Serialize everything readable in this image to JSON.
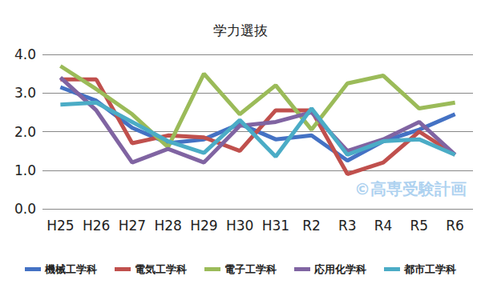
{
  "chart_data": {
    "type": "line",
    "title": "学力選抜",
    "annotation": "©高専受験計画",
    "categories": [
      "H25",
      "H26",
      "H27",
      "H28",
      "H29",
      "H30",
      "H31",
      "R2",
      "R3",
      "R4",
      "R5",
      "R6"
    ],
    "series": [
      {
        "name": "機械工学科",
        "color": "#4472c4",
        "values": [
          3.15,
          2.8,
          2.1,
          1.7,
          1.8,
          2.2,
          1.8,
          1.9,
          1.25,
          1.75,
          2.05,
          2.45
        ]
      },
      {
        "name": "電気工学科",
        "color": "#c0504d",
        "values": [
          3.35,
          3.35,
          1.7,
          1.9,
          1.85,
          1.5,
          2.55,
          2.55,
          0.9,
          1.2,
          2.0,
          1.4
        ]
      },
      {
        "name": "電子工学科",
        "color": "#9bbb59",
        "values": [
          3.7,
          3.1,
          2.45,
          1.6,
          3.5,
          2.45,
          3.2,
          2.05,
          3.25,
          3.45,
          2.6,
          2.75
        ]
      },
      {
        "name": "応用化学科",
        "color": "#8064a2",
        "values": [
          3.4,
          2.55,
          1.2,
          1.55,
          1.2,
          2.15,
          2.25,
          2.5,
          1.5,
          1.8,
          2.25,
          1.4
        ]
      },
      {
        "name": "都市工学科",
        "color": "#4bacc6",
        "values": [
          2.7,
          2.75,
          2.25,
          1.75,
          1.45,
          2.3,
          1.35,
          2.6,
          1.4,
          1.75,
          1.8,
          1.4
        ]
      }
    ],
    "ylim": [
      0,
      4
    ],
    "yticks": [
      {
        "value": 0,
        "label": "0.0"
      },
      {
        "value": 1,
        "label": "1.0"
      },
      {
        "value": 2,
        "label": "2.0"
      },
      {
        "value": 3,
        "label": "3.0"
      },
      {
        "value": 4,
        "label": "4.0"
      }
    ],
    "grid": true,
    "legend": "bottom",
    "marker": "none",
    "line_style": "solid"
  }
}
